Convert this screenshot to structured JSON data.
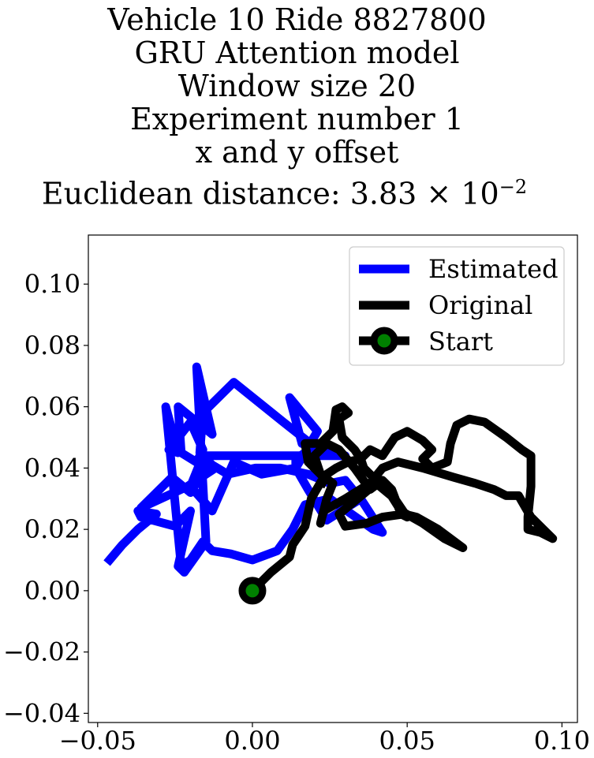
{
  "title_lines": [
    "Vehicle 10 Ride 8827800",
    "GRU Attention model",
    "Window size 20",
    "Experiment number 1",
    "x and y offset",
    "Euclidean distance: 3.83 × 10",
    "−2"
  ],
  "chart_data": {
    "type": "line",
    "xlim": [
      -0.053,
      0.105
    ],
    "ylim": [
      -0.043,
      0.116
    ],
    "xticks": [
      -0.05,
      0.0,
      0.05,
      0.1
    ],
    "xtick_labels": [
      "−0.05",
      "0.00",
      "0.05",
      "0.10"
    ],
    "yticks": [
      -0.04,
      -0.02,
      0.0,
      0.02,
      0.04,
      0.06,
      0.08,
      0.1
    ],
    "ytick_labels": [
      "−0.04",
      "−0.02",
      "0.00",
      "0.02",
      "0.04",
      "0.06",
      "0.08",
      "0.10"
    ],
    "grid": false,
    "legend_placement": "upper right",
    "legend": [
      "Estimated",
      "Original",
      "Start"
    ],
    "colors": {
      "estimated": "#0000ff",
      "original": "#000000",
      "start_face": "#008000",
      "start_edge": "#000000"
    },
    "series": [
      {
        "name": "Estimated",
        "points": [
          [
            -0.047,
            0.009
          ],
          [
            -0.042,
            0.015
          ],
          [
            -0.037,
            0.02
          ],
          [
            -0.031,
            0.025
          ],
          [
            -0.037,
            0.026
          ],
          [
            -0.036,
            0.024
          ],
          [
            -0.025,
            0.021
          ],
          [
            -0.02,
            0.026
          ],
          [
            -0.024,
            0.008
          ],
          [
            -0.022,
            0.006
          ],
          [
            -0.015,
            0.016
          ],
          [
            -0.018,
            0.073
          ],
          [
            -0.013,
            0.051
          ],
          [
            -0.024,
            0.06
          ],
          [
            -0.023,
            0.045
          ],
          [
            -0.015,
            0.04
          ],
          [
            -0.02,
            0.032
          ],
          [
            -0.026,
            0.037
          ],
          [
            -0.033,
            0.03
          ],
          [
            -0.036,
            0.027
          ],
          [
            -0.021,
            0.034
          ],
          [
            -0.012,
            0.04
          ],
          [
            -0.017,
            0.045
          ],
          [
            -0.016,
            0.058
          ],
          [
            -0.006,
            0.068
          ],
          [
            0.01,
            0.055
          ],
          [
            0.02,
            0.047
          ],
          [
            0.014,
            0.043
          ],
          [
            0.014,
            0.04
          ],
          [
            0.003,
            0.038
          ],
          [
            -0.006,
            0.042
          ],
          [
            -0.013,
            0.026
          ],
          [
            -0.02,
            0.034
          ],
          [
            -0.016,
            0.044
          ],
          [
            0.03,
            0.044
          ],
          [
            0.016,
            0.048
          ],
          [
            0.012,
            0.063
          ],
          [
            0.021,
            0.052
          ],
          [
            0.014,
            0.04
          ],
          [
            0.018,
            0.033
          ],
          [
            0.024,
            0.023
          ],
          [
            0.035,
            0.03
          ],
          [
            0.042,
            0.019
          ],
          [
            0.039,
            0.02
          ],
          [
            0.025,
            0.03
          ],
          [
            0.017,
            0.028
          ],
          [
            0.013,
            0.02
          ],
          [
            0.008,
            0.013
          ],
          [
            0.0,
            0.01
          ],
          [
            -0.007,
            0.012
          ],
          [
            -0.013,
            0.013
          ],
          [
            -0.016,
            0.016
          ],
          [
            -0.02,
            0.01
          ],
          [
            -0.023,
            0.008
          ],
          [
            -0.028,
            0.06
          ],
          [
            -0.024,
            0.045
          ],
          [
            -0.027,
            0.046
          ],
          [
            -0.02,
            0.055
          ],
          [
            -0.016,
            0.046
          ],
          [
            -0.018,
            0.042
          ],
          [
            -0.013,
            0.041
          ],
          [
            -0.008,
            0.038
          ],
          [
            0.001,
            0.04
          ],
          [
            0.009,
            0.04
          ],
          [
            0.018,
            0.038
          ],
          [
            0.025,
            0.035
          ],
          [
            0.03,
            0.036
          ],
          [
            0.034,
            0.031
          ]
        ]
      },
      {
        "name": "Original",
        "points": [
          [
            0.0,
            0.0
          ],
          [
            0.006,
            0.006
          ],
          [
            0.012,
            0.011
          ],
          [
            0.013,
            0.015
          ],
          [
            0.017,
            0.021
          ],
          [
            0.019,
            0.03
          ],
          [
            0.023,
            0.037
          ],
          [
            0.018,
            0.042
          ],
          [
            0.017,
            0.048
          ],
          [
            0.022,
            0.048
          ],
          [
            0.026,
            0.052
          ],
          [
            0.027,
            0.059
          ],
          [
            0.029,
            0.06
          ],
          [
            0.031,
            0.058
          ],
          [
            0.028,
            0.056
          ],
          [
            0.029,
            0.05
          ],
          [
            0.033,
            0.046
          ],
          [
            0.035,
            0.043
          ],
          [
            0.038,
            0.046
          ],
          [
            0.042,
            0.044
          ],
          [
            0.044,
            0.047
          ],
          [
            0.046,
            0.05
          ],
          [
            0.05,
            0.052
          ],
          [
            0.055,
            0.049
          ],
          [
            0.058,
            0.046
          ],
          [
            0.055,
            0.043
          ],
          [
            0.058,
            0.04
          ],
          [
            0.063,
            0.042
          ],
          [
            0.064,
            0.048
          ],
          [
            0.066,
            0.054
          ],
          [
            0.07,
            0.056
          ],
          [
            0.075,
            0.055
          ],
          [
            0.082,
            0.05
          ],
          [
            0.087,
            0.046
          ],
          [
            0.09,
            0.044
          ],
          [
            0.09,
            0.034
          ],
          [
            0.089,
            0.024
          ],
          [
            0.089,
            0.02
          ],
          [
            0.093,
            0.019
          ],
          [
            0.097,
            0.017
          ],
          [
            0.094,
            0.02
          ],
          [
            0.09,
            0.024
          ],
          [
            0.086,
            0.031
          ],
          [
            0.082,
            0.031
          ],
          [
            0.078,
            0.033
          ],
          [
            0.072,
            0.035
          ],
          [
            0.065,
            0.037
          ],
          [
            0.055,
            0.04
          ],
          [
            0.047,
            0.042
          ],
          [
            0.042,
            0.04
          ],
          [
            0.038,
            0.035
          ],
          [
            0.03,
            0.03
          ],
          [
            0.023,
            0.026
          ],
          [
            0.022,
            0.022
          ],
          [
            0.024,
            0.03
          ],
          [
            0.026,
            0.035
          ],
          [
            0.022,
            0.038
          ],
          [
            0.02,
            0.044
          ],
          [
            0.024,
            0.048
          ],
          [
            0.028,
            0.046
          ],
          [
            0.033,
            0.04
          ],
          [
            0.038,
            0.033
          ],
          [
            0.042,
            0.036
          ],
          [
            0.045,
            0.033
          ],
          [
            0.048,
            0.025
          ],
          [
            0.05,
            0.024
          ],
          [
            0.046,
            0.03
          ],
          [
            0.04,
            0.035
          ],
          [
            0.034,
            0.03
          ],
          [
            0.028,
            0.025
          ],
          [
            0.03,
            0.021
          ],
          [
            0.037,
            0.022
          ],
          [
            0.042,
            0.024
          ],
          [
            0.049,
            0.025
          ],
          [
            0.053,
            0.024
          ],
          [
            0.06,
            0.02
          ],
          [
            0.068,
            0.014
          ],
          [
            0.062,
            0.017
          ],
          [
            0.055,
            0.022
          ],
          [
            0.048,
            0.026
          ],
          [
            0.043,
            0.034
          ],
          [
            0.039,
            0.037
          ],
          [
            0.036,
            0.04
          ],
          [
            0.035,
            0.043
          ],
          [
            0.031,
            0.042
          ],
          [
            0.027,
            0.04
          ],
          [
            0.024,
            0.038
          ],
          [
            0.022,
            0.034
          ]
        ]
      }
    ],
    "start_point": [
      0.0,
      0.0
    ]
  }
}
